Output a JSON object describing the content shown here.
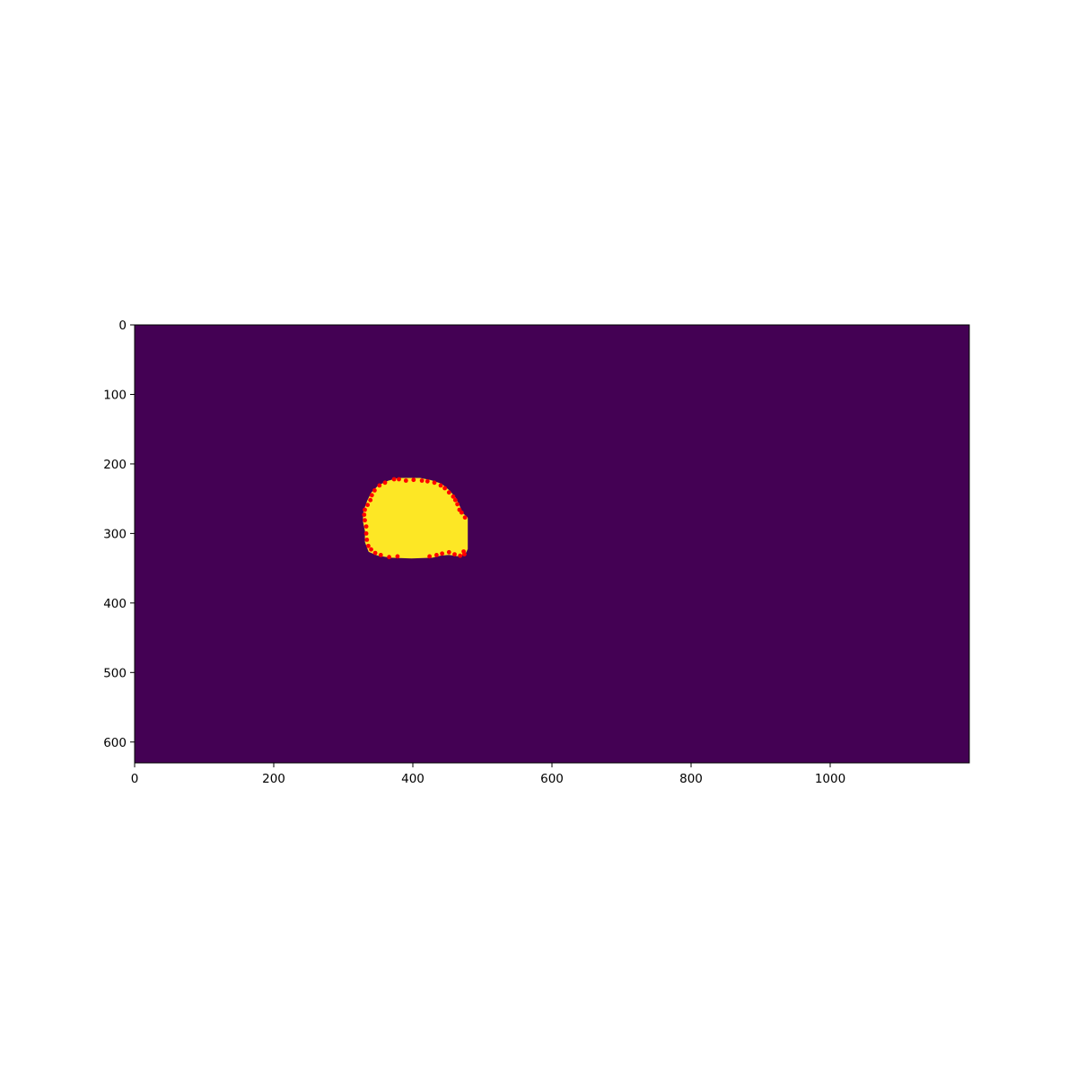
{
  "chart_data": {
    "type": "heatmap",
    "title": "",
    "xlabel": "",
    "ylabel": "",
    "image_width": 1200,
    "image_height": 630,
    "xlim": [
      0,
      1200
    ],
    "ylim": [
      630,
      0
    ],
    "y_axis_inverted": true,
    "grid": false,
    "legend": "none",
    "colormap": "viridis",
    "colors": {
      "background": "#440154",
      "mask": "#fde725",
      "boundary_points": "#ff0000"
    },
    "x_ticks": [
      0,
      200,
      400,
      600,
      800,
      1000
    ],
    "y_ticks": [
      0,
      100,
      200,
      300,
      400,
      500,
      600
    ],
    "mask_region": {
      "outline": [
        [
          380,
          222
        ],
        [
          410,
          222
        ],
        [
          425,
          225
        ],
        [
          440,
          230
        ],
        [
          452,
          240
        ],
        [
          460,
          250
        ],
        [
          466,
          262
        ],
        [
          470,
          272
        ],
        [
          477,
          278
        ],
        [
          477,
          300
        ],
        [
          477,
          322
        ],
        [
          474,
          328
        ],
        [
          466,
          331
        ],
        [
          452,
          329
        ],
        [
          440,
          330
        ],
        [
          428,
          333
        ],
        [
          398,
          334
        ],
        [
          368,
          333
        ],
        [
          350,
          330
        ],
        [
          338,
          325
        ],
        [
          333,
          312
        ],
        [
          333,
          296
        ],
        [
          330,
          282
        ],
        [
          331,
          268
        ],
        [
          336,
          254
        ],
        [
          342,
          242
        ],
        [
          352,
          232
        ],
        [
          365,
          226
        ]
      ]
    },
    "boundary_points": [
      [
        373,
        222
      ],
      [
        380,
        222
      ],
      [
        390,
        224
      ],
      [
        401,
        223
      ],
      [
        413,
        224
      ],
      [
        421,
        225
      ],
      [
        431,
        227
      ],
      [
        440,
        231
      ],
      [
        446,
        235
      ],
      [
        452,
        241
      ],
      [
        458,
        247
      ],
      [
        461,
        252
      ],
      [
        464,
        258
      ],
      [
        467,
        266
      ],
      [
        470,
        270
      ],
      [
        475,
        277
      ],
      [
        360,
        227
      ],
      [
        352,
        231
      ],
      [
        345,
        238
      ],
      [
        341,
        245
      ],
      [
        339,
        252
      ],
      [
        335,
        259
      ],
      [
        331,
        266
      ],
      [
        330,
        273
      ],
      [
        331,
        281
      ],
      [
        333,
        290
      ],
      [
        333,
        300
      ],
      [
        334,
        309
      ],
      [
        336,
        318
      ],
      [
        340,
        323
      ],
      [
        346,
        328
      ],
      [
        354,
        331
      ],
      [
        366,
        334
      ],
      [
        378,
        333
      ],
      [
        424,
        333
      ],
      [
        434,
        331
      ],
      [
        442,
        329
      ],
      [
        452,
        327
      ],
      [
        460,
        330
      ],
      [
        468,
        332
      ],
      [
        474,
        330
      ],
      [
        473,
        326
      ]
    ]
  }
}
